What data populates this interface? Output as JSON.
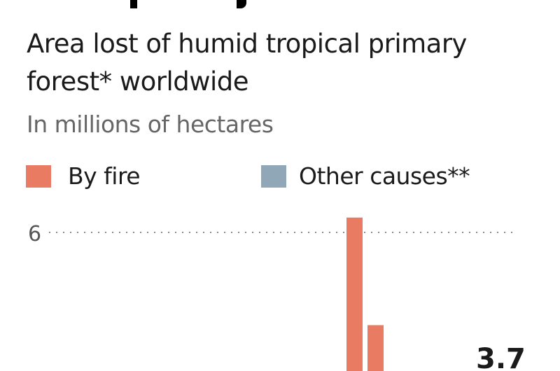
{
  "chart_data": {
    "type": "bar",
    "subtitle": "Area lost of humid tropical primary forest* worldwide",
    "ylabel": "In millions of hectares",
    "legend": [
      {
        "name": "By fire",
        "color": "#e97b62"
      },
      {
        "name": "Other causes**",
        "color": "#8fa7b6"
      }
    ],
    "legend_placement": "top-left",
    "yticks": [
      "6"
    ],
    "grid": "dotted horizontal",
    "series": [
      {
        "name": "By fire",
        "values": [
          6.4,
          3.5
        ]
      }
    ],
    "annotations": [
      "3.7"
    ]
  }
}
